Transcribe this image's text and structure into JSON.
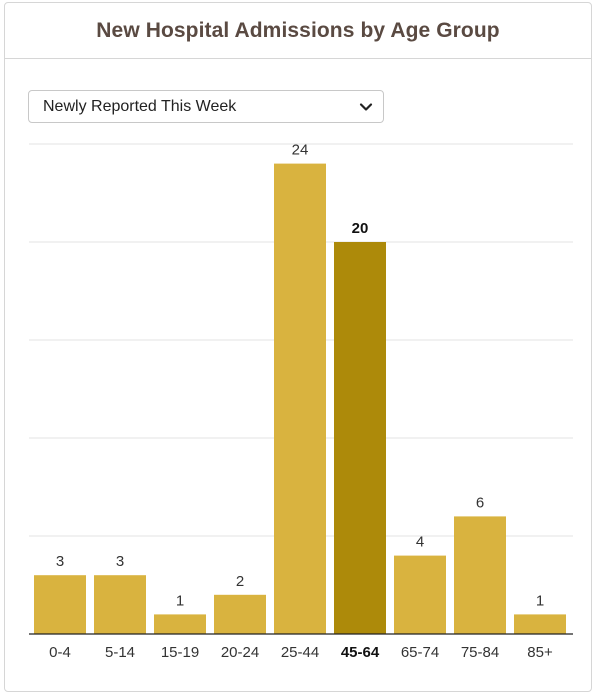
{
  "card": {
    "title": "New Hospital Admissions by Age Group"
  },
  "filter": {
    "selected": "Newly Reported This Week",
    "icon": "chevron-down-icon"
  },
  "colors": {
    "bar": "#d9b33f",
    "bar_highlight": "#ad8a0a",
    "grid": "#e3e3e3",
    "axis": "#222222",
    "label_text": "#333333",
    "title_text": "#5a4a42"
  },
  "chart_data": {
    "type": "bar",
    "categories": [
      "0-4",
      "5-14",
      "15-19",
      "20-24",
      "25-44",
      "45-64",
      "65-74",
      "75-84",
      "85+"
    ],
    "values": [
      3,
      3,
      1,
      2,
      24,
      20,
      4,
      6,
      1
    ],
    "highlighted_category": "45-64",
    "title": "New Hospital Admissions by Age Group",
    "xlabel": "",
    "ylabel": "",
    "ylim": [
      0,
      30
    ],
    "grid": true,
    "legend": "none",
    "data_labels": true
  }
}
